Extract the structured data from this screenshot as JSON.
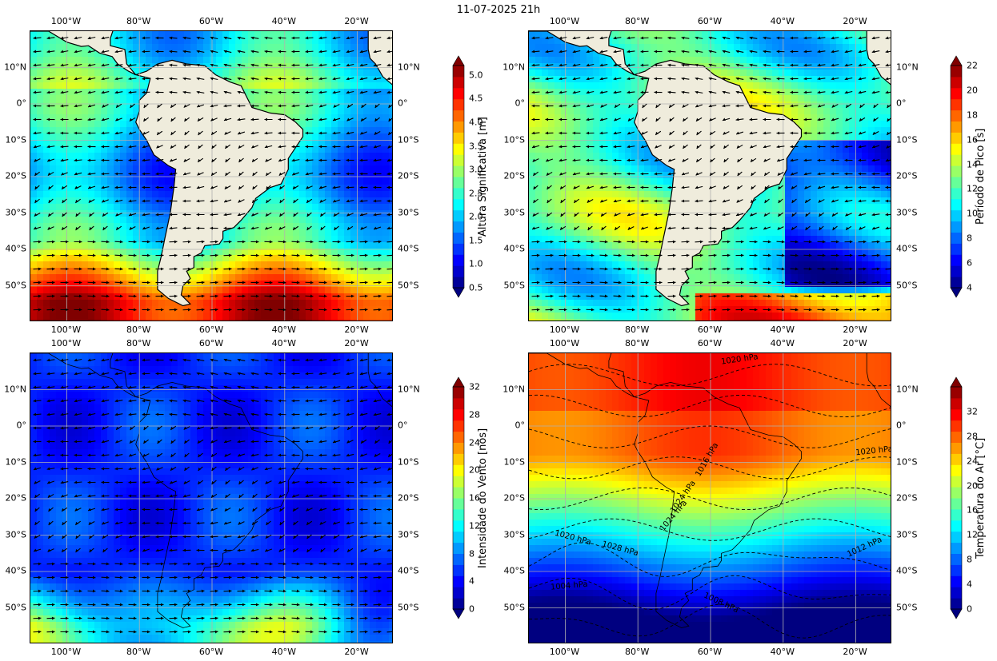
{
  "title": "11-07-2025 21h",
  "lon_ticks": [
    "100°W",
    "80°W",
    "60°W",
    "40°W",
    "20°W"
  ],
  "lat_ticks": [
    "10°N",
    "0°",
    "10°S",
    "20°S",
    "30°S",
    "40°S",
    "50°S"
  ],
  "chart_data": [
    {
      "type": "heatmap",
      "variable": "Altura Significativa [m]",
      "colorbar_label": "Altura Significativa [m]",
      "colorbar_ticks": [
        "0.5",
        "1.0",
        "1.5",
        "2.0",
        "2.5",
        "3.0",
        "3.5",
        "4.0",
        "4.5",
        "5.0"
      ],
      "range": [
        0.5,
        5.2
      ],
      "overlay": "arrows",
      "colormap": "jet"
    },
    {
      "type": "heatmap",
      "variable": "Período de Pico [s]",
      "colorbar_label": "Período de Pico [s]",
      "colorbar_ticks": [
        "4",
        "6",
        "8",
        "10",
        "12",
        "14",
        "16",
        "18",
        "20",
        "22"
      ],
      "range": [
        4,
        22
      ],
      "overlay": "arrows",
      "colormap": "jet"
    },
    {
      "type": "heatmap",
      "variable": "Intensidade do Vento [nós]",
      "colorbar_label": "Intensidade do Vento [nós]",
      "colorbar_ticks": [
        "0",
        "4",
        "8",
        "12",
        "16",
        "20",
        "24",
        "28",
        "32"
      ],
      "range": [
        0,
        32
      ],
      "overlay": "arrows",
      "colormap": "jet"
    },
    {
      "type": "heatmap",
      "variable": "Temperatura do Ar [°C]",
      "colorbar_label": "Temperatura do Ar [°C]",
      "colorbar_ticks": [
        "0",
        "4",
        "8",
        "12",
        "16",
        "20",
        "24",
        "28",
        "32"
      ],
      "range": [
        0,
        36
      ],
      "overlay": "isobars",
      "colormap": "jet",
      "isobar_labels": [
        "1020 hPa",
        "1020 hPa",
        "1016 hPa",
        "1024 hPa",
        "1024 hPa",
        "1020 hPa",
        "1028 hPa",
        "1012 hPa",
        "1004 hPa",
        "1008 hPa"
      ]
    }
  ]
}
